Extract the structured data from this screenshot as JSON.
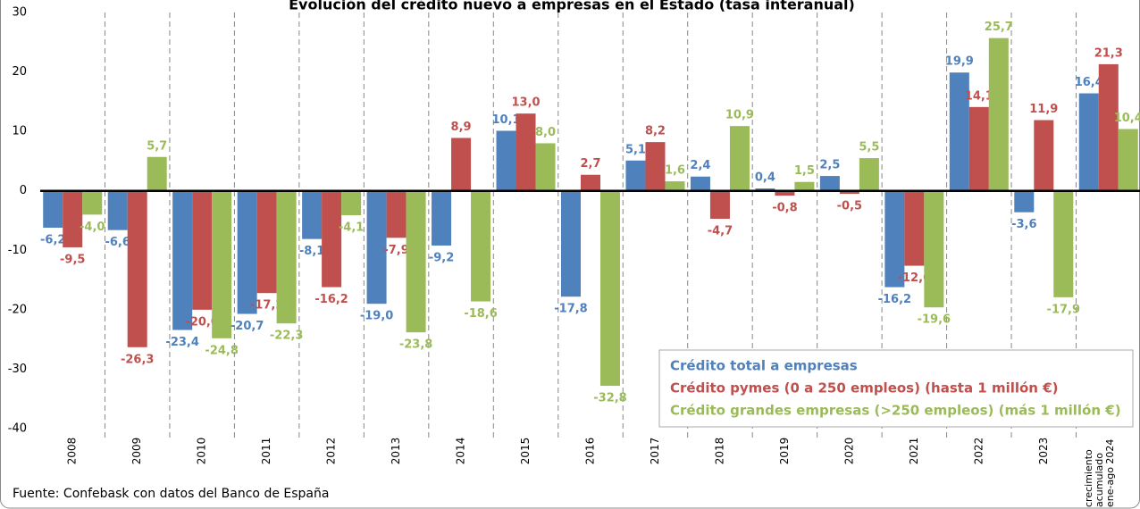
{
  "chart_data": {
    "type": "bar",
    "title": "Evolución del crédito nuevo a empresas en el Estado (tasa interanual)",
    "source": "Fuente: Confebask con datos del Banco de España",
    "categories": [
      "2008",
      "2009",
      "2010",
      "2011",
      "2012",
      "2013",
      "2014",
      "2015",
      "2016",
      "2017",
      "2018",
      "2019",
      "2020",
      "2021",
      "2022",
      "2023",
      "crecimiento acumulado ene-ago 2024"
    ],
    "series": [
      {
        "name": "Crédito total a empresas",
        "color": "#4f81bd",
        "values": [
          -6.2,
          -6.6,
          -23.4,
          -20.7,
          -8.1,
          -19.0,
          -9.2,
          10.1,
          -17.8,
          5.1,
          2.4,
          0.4,
          2.5,
          -16.2,
          19.9,
          -3.6,
          16.4
        ],
        "value_labels": [
          "-6,2",
          "-6,6",
          "-23,4",
          "-20,7",
          "-8,1",
          "-19,0",
          "-9,2",
          "10,1",
          "-17,8",
          "5,1",
          "2,4",
          "0,4",
          "2,5",
          "-16,2",
          "19,9",
          "-3,6",
          "16,4"
        ]
      },
      {
        "name": "Crédito pymes (0 a 250 empleos) (hasta 1 millón €)",
        "color": "#c0504d",
        "values": [
          -9.5,
          -26.3,
          -20.0,
          -17.2,
          -16.2,
          -7.9,
          8.9,
          13.0,
          2.7,
          8.2,
          -4.7,
          -0.8,
          -0.5,
          -12.6,
          14.1,
          11.9,
          21.3
        ],
        "value_labels": [
          "-9,5",
          "-26,3",
          "-20,0",
          "-17,2",
          "-16,2",
          "-7,9",
          "8,9",
          "13,0",
          "2,7",
          "8,2",
          "-4,7",
          "-0,8",
          "-0,5",
          "-12,6",
          "14,1",
          "11,9",
          "21,3"
        ]
      },
      {
        "name": "Crédito grandes empresas (>250 empleos) (más 1 millón €)",
        "color": "#9bbb59",
        "values": [
          -4.0,
          5.7,
          -24.8,
          -22.3,
          -4.1,
          -23.8,
          -18.6,
          8.0,
          -32.8,
          1.6,
          10.9,
          1.5,
          5.5,
          -19.6,
          25.7,
          -17.9,
          10.4
        ],
        "value_labels": [
          "-4,0",
          "5,7",
          "-24,8",
          "-22,3",
          "-4,1",
          "-23,8",
          "-18,6",
          "8,0",
          "-32,8",
          "1,6",
          "10,9",
          "1,5",
          "5,5",
          "-19,6",
          "25,7",
          "-17,9",
          "10,4"
        ]
      }
    ],
    "ylim": [
      -40,
      30
    ],
    "yticks": [
      -40,
      -30,
      -20,
      -10,
      0,
      10,
      20,
      30
    ],
    "legend": "lower right"
  }
}
